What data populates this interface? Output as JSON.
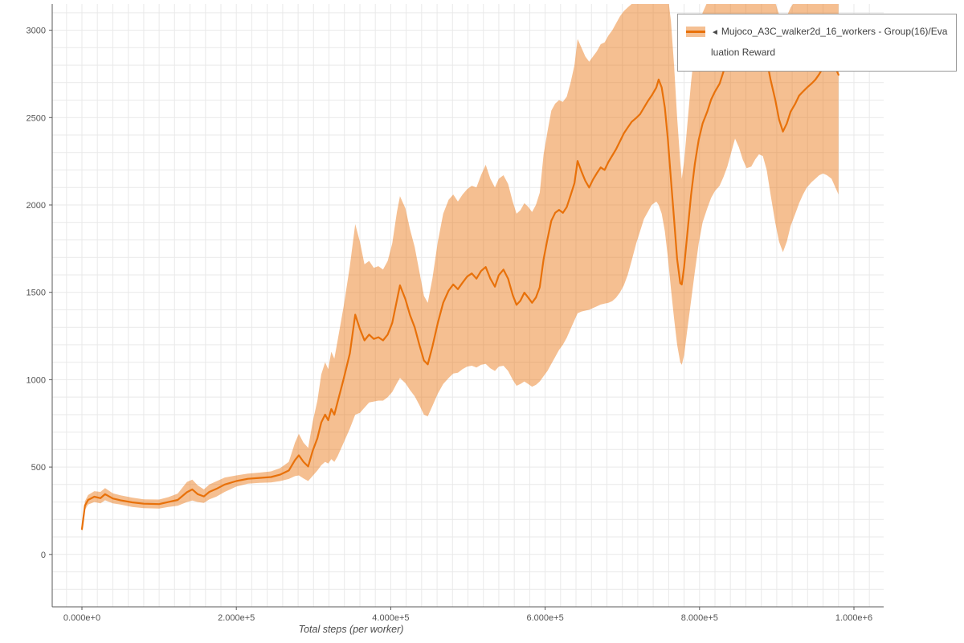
{
  "page": {
    "background": "#ffffff"
  },
  "legend": {
    "marker": "◄",
    "label": "Mujoco_A3C_walker2d_16_workers - Group(16)/Evaluation Reward"
  },
  "chart_data": {
    "type": "line",
    "title": "",
    "xlabel": "Total steps (per worker)",
    "ylabel": "",
    "xlim": [
      -38500,
      1038500
    ],
    "ylim": [
      -300,
      3150
    ],
    "x_ticks": [
      0,
      200000,
      400000,
      600000,
      800000,
      1000000
    ],
    "x_tick_labels": [
      "0.000e+0",
      "2.000e+5",
      "4.000e+5",
      "6.000e+5",
      "8.000e+5",
      "1.000e+6"
    ],
    "y_ticks": [
      0,
      500,
      1000,
      1500,
      2000,
      2500,
      3000
    ],
    "y_tick_labels": [
      "0",
      "500",
      "1000",
      "1500",
      "2000",
      "2500",
      "3000"
    ],
    "grid": {
      "x_minor_step": 20000,
      "y_minor_step": 100,
      "color": "#e9e9e9"
    },
    "axis_color": "#5a5a5a",
    "legend_position": "top-right",
    "series": [
      {
        "name": "Mujoco_A3C_walker2d_16_workers - Group(16)/Evaluation Reward",
        "color": "#e8710a",
        "band_color": "rgba(232,113,10,0.45)",
        "points_format": [
          "x",
          "mean",
          "lo",
          "hi"
        ],
        "points": [
          [
            0,
            145,
            130,
            160
          ],
          [
            4000,
            280,
            255,
            305
          ],
          [
            8000,
            312,
            285,
            340
          ],
          [
            16000,
            330,
            300,
            362
          ],
          [
            24000,
            322,
            292,
            358
          ],
          [
            30000,
            345,
            310,
            380
          ],
          [
            40000,
            320,
            292,
            350
          ],
          [
            50000,
            310,
            285,
            338
          ],
          [
            65000,
            298,
            272,
            325
          ],
          [
            80000,
            290,
            265,
            315
          ],
          [
            100000,
            288,
            262,
            314
          ],
          [
            112000,
            300,
            272,
            328
          ],
          [
            124000,
            312,
            278,
            348
          ],
          [
            136000,
            356,
            300,
            415
          ],
          [
            143000,
            372,
            308,
            428
          ],
          [
            150000,
            345,
            300,
            395
          ],
          [
            158000,
            332,
            295,
            372
          ],
          [
            165000,
            358,
            315,
            400
          ],
          [
            174000,
            375,
            330,
            418
          ],
          [
            185000,
            400,
            358,
            440
          ],
          [
            200000,
            420,
            388,
            452
          ],
          [
            215000,
            433,
            405,
            462
          ],
          [
            230000,
            438,
            410,
            468
          ],
          [
            245000,
            443,
            412,
            475
          ],
          [
            257000,
            457,
            420,
            495
          ],
          [
            268000,
            480,
            432,
            530
          ],
          [
            276000,
            540,
            448,
            640
          ],
          [
            281000,
            567,
            452,
            690
          ],
          [
            287000,
            530,
            435,
            640
          ],
          [
            293000,
            503,
            420,
            610
          ],
          [
            299000,
            594,
            450,
            760
          ],
          [
            305000,
            665,
            480,
            880
          ],
          [
            310000,
            755,
            510,
            1030
          ],
          [
            315000,
            800,
            530,
            1100
          ],
          [
            319000,
            768,
            520,
            1060
          ],
          [
            323000,
            832,
            545,
            1160
          ],
          [
            327000,
            800,
            530,
            1120
          ],
          [
            331000,
            870,
            560,
            1220
          ],
          [
            339000,
            1005,
            640,
            1420
          ],
          [
            347000,
            1150,
            720,
            1650
          ],
          [
            354000,
            1372,
            800,
            1890
          ],
          [
            360000,
            1290,
            810,
            1790
          ],
          [
            366000,
            1225,
            840,
            1660
          ],
          [
            372000,
            1258,
            870,
            1680
          ],
          [
            378000,
            1233,
            875,
            1640
          ],
          [
            384000,
            1243,
            880,
            1650
          ],
          [
            390000,
            1225,
            880,
            1630
          ],
          [
            396000,
            1258,
            900,
            1680
          ],
          [
            402000,
            1325,
            930,
            1780
          ],
          [
            408000,
            1455,
            980,
            1960
          ],
          [
            412000,
            1540,
            1010,
            2050
          ],
          [
            419000,
            1460,
            980,
            1980
          ],
          [
            425000,
            1370,
            940,
            1860
          ],
          [
            431000,
            1300,
            905,
            1760
          ],
          [
            437000,
            1200,
            855,
            1620
          ],
          [
            443000,
            1110,
            800,
            1480
          ],
          [
            448000,
            1088,
            790,
            1440
          ],
          [
            454000,
            1190,
            850,
            1580
          ],
          [
            461000,
            1325,
            920,
            1790
          ],
          [
            468000,
            1440,
            975,
            1950
          ],
          [
            475000,
            1510,
            1010,
            2030
          ],
          [
            481000,
            1545,
            1035,
            2060
          ],
          [
            487000,
            1518,
            1040,
            2020
          ],
          [
            493000,
            1555,
            1060,
            2060
          ],
          [
            499000,
            1590,
            1075,
            2090
          ],
          [
            505000,
            1608,
            1080,
            2110
          ],
          [
            511000,
            1578,
            1070,
            2100
          ],
          [
            517000,
            1622,
            1085,
            2170
          ],
          [
            523000,
            1645,
            1090,
            2230
          ],
          [
            529000,
            1578,
            1065,
            2150
          ],
          [
            535000,
            1532,
            1050,
            2100
          ],
          [
            540000,
            1598,
            1075,
            2150
          ],
          [
            546000,
            1630,
            1080,
            2170
          ],
          [
            552000,
            1578,
            1050,
            2120
          ],
          [
            558000,
            1485,
            1000,
            2020
          ],
          [
            563000,
            1428,
            965,
            1950
          ],
          [
            568000,
            1452,
            975,
            1970
          ],
          [
            573000,
            1498,
            990,
            2010
          ],
          [
            578000,
            1470,
            975,
            1990
          ],
          [
            583000,
            1440,
            960,
            1960
          ],
          [
            588000,
            1470,
            970,
            2000
          ],
          [
            593000,
            1530,
            990,
            2070
          ],
          [
            598000,
            1690,
            1020,
            2290
          ],
          [
            603000,
            1805,
            1050,
            2420
          ],
          [
            608000,
            1910,
            1090,
            2540
          ],
          [
            613000,
            1955,
            1130,
            2580
          ],
          [
            618000,
            1972,
            1170,
            2600
          ],
          [
            623000,
            1955,
            1200,
            2590
          ],
          [
            628000,
            1988,
            1240,
            2620
          ],
          [
            633000,
            2055,
            1290,
            2700
          ],
          [
            638000,
            2125,
            1340,
            2800
          ],
          [
            642000,
            2252,
            1380,
            2950
          ],
          [
            647000,
            2192,
            1390,
            2900
          ],
          [
            652000,
            2138,
            1395,
            2850
          ],
          [
            657000,
            2100,
            1400,
            2820
          ],
          [
            662000,
            2146,
            1410,
            2850
          ],
          [
            667000,
            2182,
            1420,
            2880
          ],
          [
            672000,
            2215,
            1430,
            2920
          ],
          [
            677000,
            2200,
            1435,
            2930
          ],
          [
            682000,
            2246,
            1440,
            2970
          ],
          [
            687000,
            2283,
            1450,
            3000
          ],
          [
            692000,
            2320,
            1470,
            3040
          ],
          [
            697000,
            2365,
            1500,
            3080
          ],
          [
            702000,
            2410,
            1540,
            3110
          ],
          [
            707000,
            2443,
            1600,
            3130
          ],
          [
            712000,
            2475,
            1680,
            3150
          ],
          [
            718000,
            2498,
            1780,
            3180
          ],
          [
            723000,
            2520,
            1850,
            3200
          ],
          [
            728000,
            2557,
            1920,
            3230
          ],
          [
            733000,
            2594,
            1960,
            3250
          ],
          [
            738000,
            2626,
            2000,
            3270
          ],
          [
            744000,
            2672,
            2020,
            3290
          ],
          [
            747000,
            2718,
            2000,
            3300
          ],
          [
            751000,
            2672,
            1950,
            3290
          ],
          [
            755000,
            2557,
            1850,
            3270
          ],
          [
            759000,
            2374,
            1700,
            3200
          ],
          [
            763000,
            2146,
            1520,
            3050
          ],
          [
            767000,
            1918,
            1350,
            2800
          ],
          [
            771000,
            1690,
            1200,
            2500
          ],
          [
            775000,
            1552,
            1100,
            2250
          ],
          [
            777000,
            1545,
            1085,
            2150
          ],
          [
            780000,
            1645,
            1140,
            2250
          ],
          [
            784000,
            1826,
            1280,
            2450
          ],
          [
            789000,
            2055,
            1450,
            2700
          ],
          [
            794000,
            2237,
            1620,
            2900
          ],
          [
            799000,
            2374,
            1780,
            3020
          ],
          [
            804000,
            2466,
            1900,
            3100
          ],
          [
            810000,
            2534,
            1980,
            3160
          ],
          [
            815000,
            2603,
            2040,
            3220
          ],
          [
            820000,
            2649,
            2080,
            3260
          ],
          [
            826000,
            2694,
            2110,
            3290
          ],
          [
            831000,
            2763,
            2160,
            3310
          ],
          [
            836000,
            2831,
            2220,
            3330
          ],
          [
            841000,
            2900,
            2300,
            3350
          ],
          [
            846000,
            2960,
            2380,
            3360
          ],
          [
            851000,
            2900,
            2330,
            3340
          ],
          [
            856000,
            2831,
            2260,
            3310
          ],
          [
            861000,
            2786,
            2210,
            3290
          ],
          [
            867000,
            2808,
            2220,
            3300
          ],
          [
            872000,
            2854,
            2260,
            3320
          ],
          [
            877000,
            2886,
            2290,
            3330
          ],
          [
            882000,
            2895,
            2280,
            3330
          ],
          [
            887000,
            2831,
            2200,
            3300
          ],
          [
            892000,
            2717,
            2060,
            3240
          ],
          [
            898000,
            2603,
            1900,
            3160
          ],
          [
            903000,
            2489,
            1790,
            3090
          ],
          [
            908000,
            2420,
            1730,
            3040
          ],
          [
            913000,
            2466,
            1790,
            3080
          ],
          [
            918000,
            2534,
            1880,
            3130
          ],
          [
            924000,
            2580,
            1950,
            3170
          ],
          [
            929000,
            2626,
            2010,
            3210
          ],
          [
            934000,
            2649,
            2060,
            3230
          ],
          [
            939000,
            2671,
            2100,
            3250
          ],
          [
            945000,
            2694,
            2130,
            3270
          ],
          [
            950000,
            2717,
            2150,
            3280
          ],
          [
            955000,
            2749,
            2170,
            3300
          ],
          [
            960000,
            2786,
            2180,
            3310
          ],
          [
            965000,
            2826,
            2170,
            3320
          ],
          [
            971000,
            2840,
            2150,
            3320
          ],
          [
            976000,
            2786,
            2100,
            3300
          ],
          [
            980000,
            2745,
            2060,
            3300
          ]
        ]
      }
    ]
  }
}
